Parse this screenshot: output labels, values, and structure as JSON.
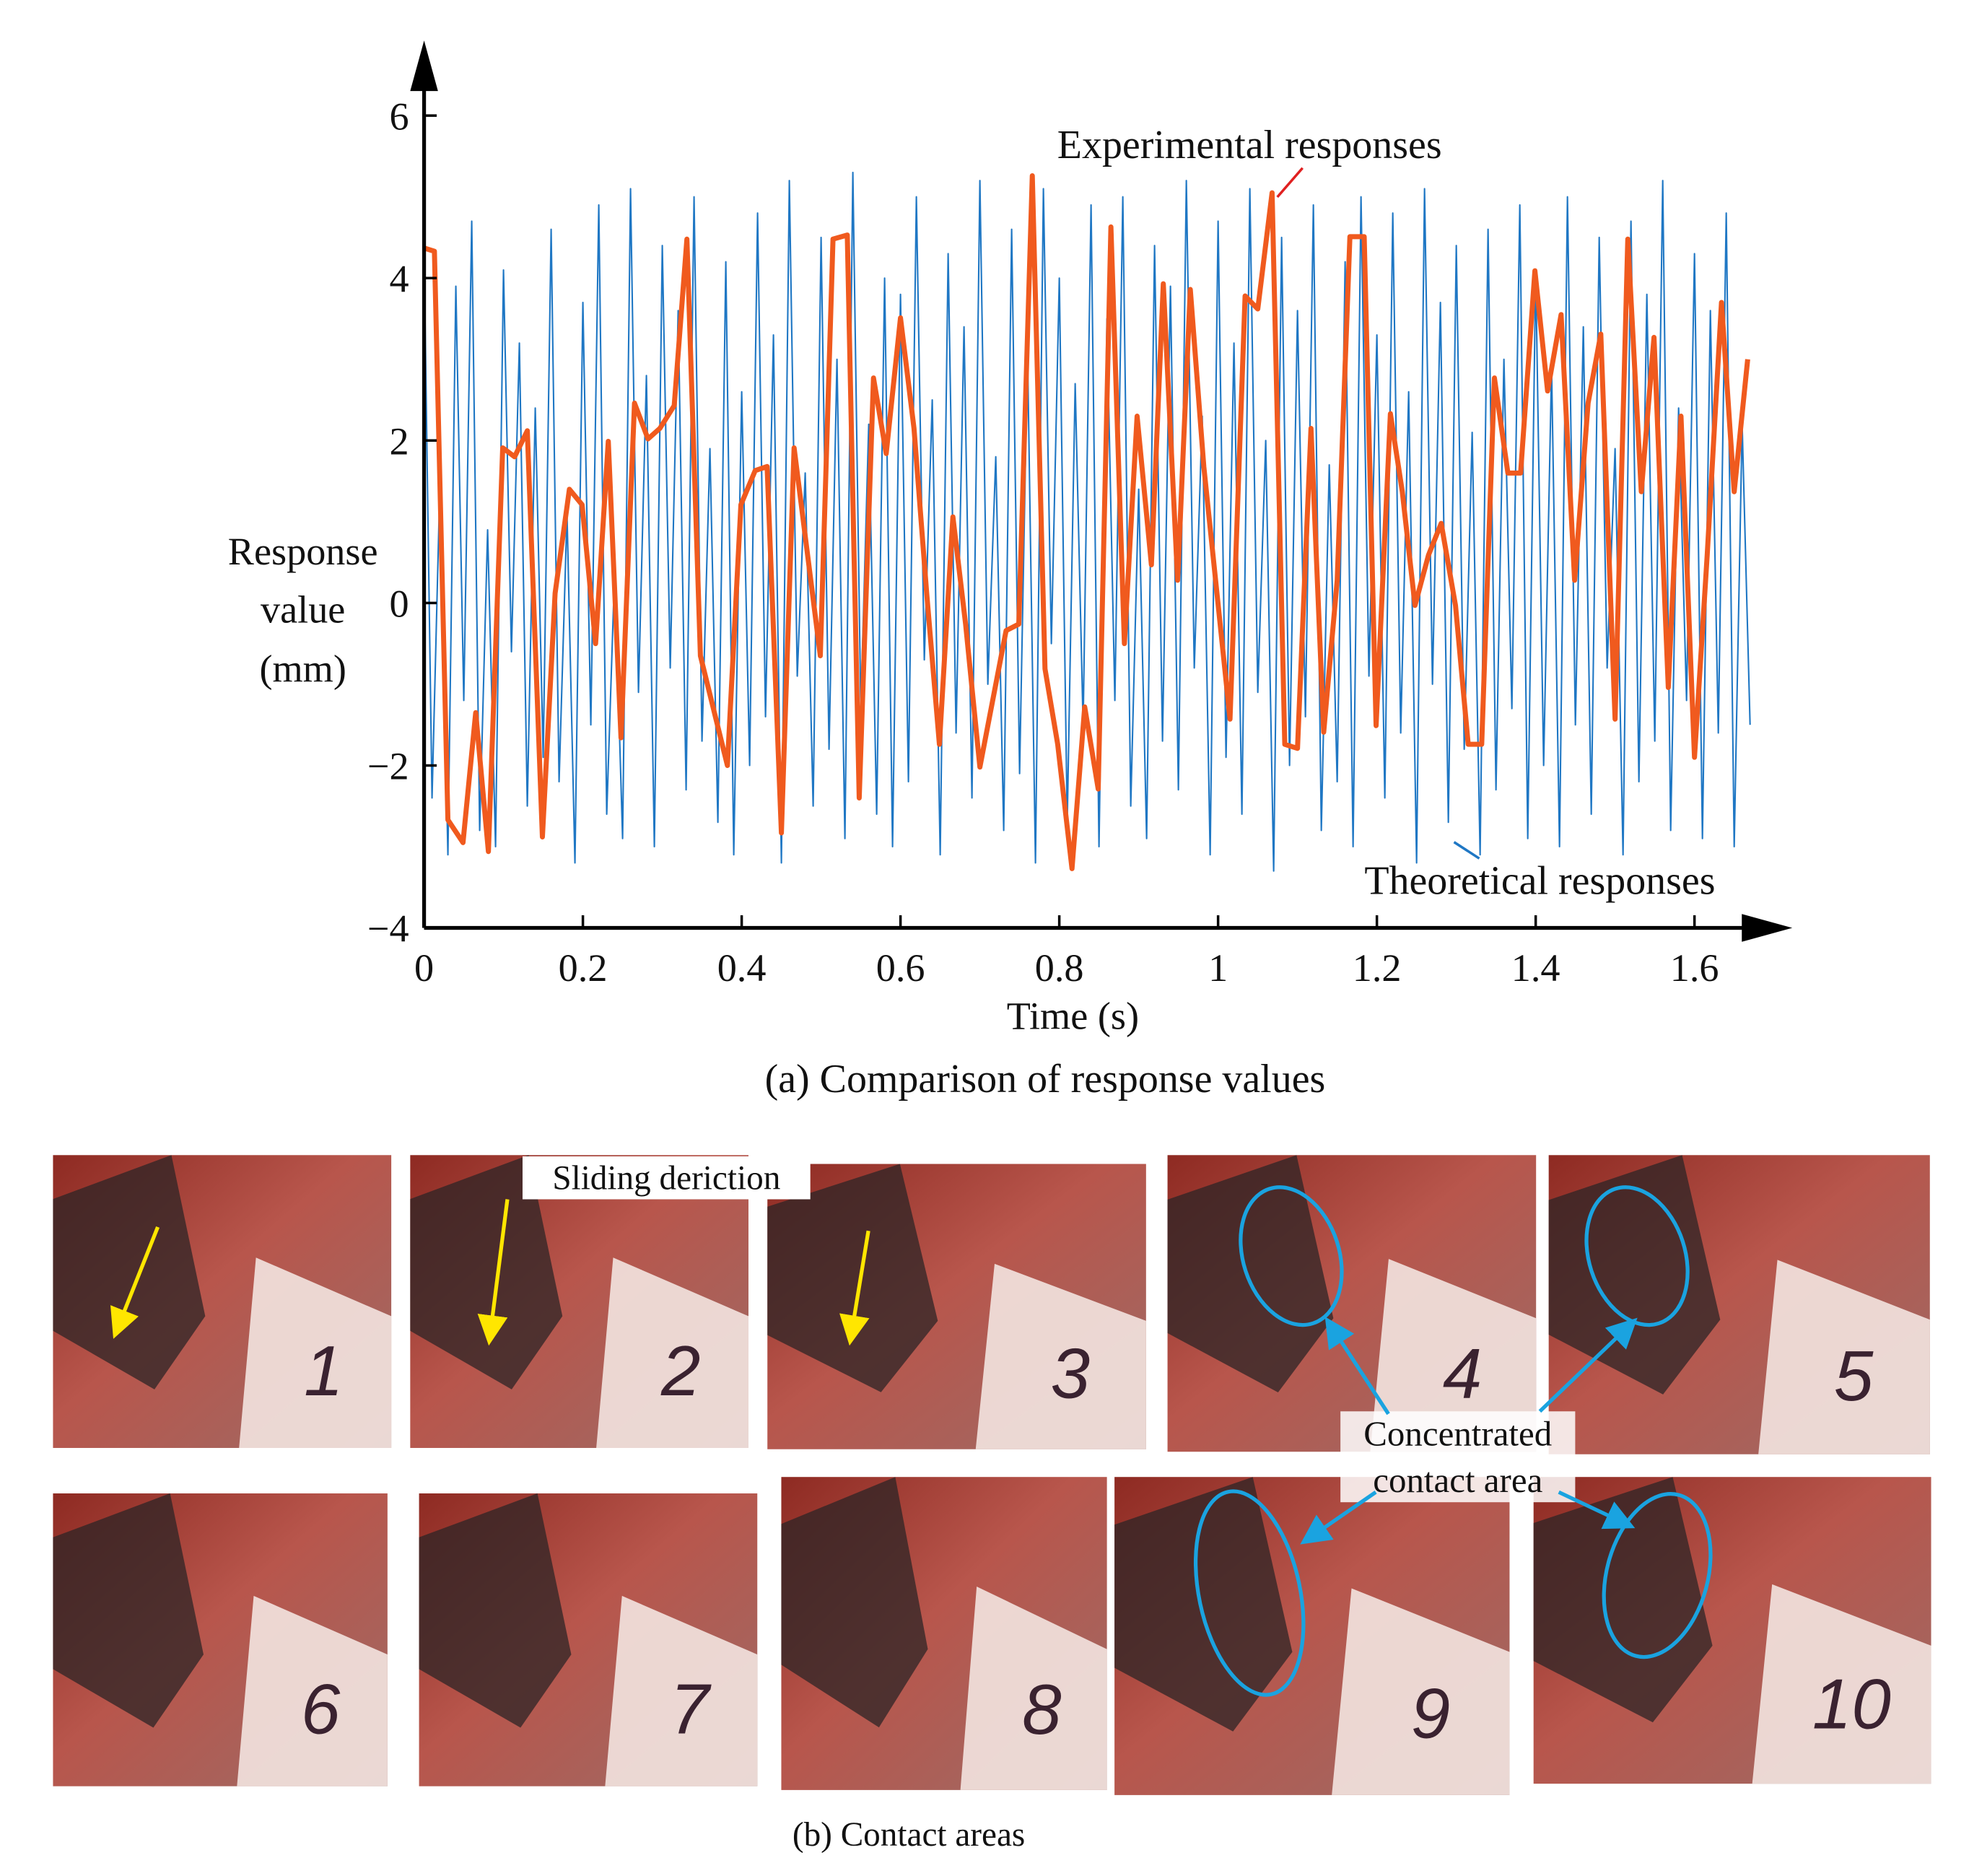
{
  "chart_data": {
    "type": "line",
    "caption": "(a)  Comparison of response values",
    "xlabel": "Time (s)",
    "ylabel": [
      "Response",
      "value",
      "(mm)"
    ],
    "xlim": [
      0,
      1.72
    ],
    "ylim": [
      -4,
      6.8
    ],
    "xticks": [
      0,
      0.2,
      0.4,
      0.6,
      0.8,
      1,
      1.2,
      1.4,
      1.6
    ],
    "yticks": [
      {
        "value": -4,
        "label": "−4"
      },
      {
        "value": -2,
        "label": "−2"
      },
      0,
      2,
      4,
      6
    ],
    "series": [
      {
        "name": "Theoretical responses",
        "color": "#1f77c4",
        "x": [
          0,
          0.01,
          0.02,
          0.03,
          0.04,
          0.05,
          0.06,
          0.07,
          0.08,
          0.09,
          0.1,
          0.11,
          0.12,
          0.13,
          0.14,
          0.15,
          0.16,
          0.17,
          0.18,
          0.19,
          0.2,
          0.21,
          0.22,
          0.23,
          0.24,
          0.25,
          0.26,
          0.27,
          0.28,
          0.29,
          0.3,
          0.31,
          0.32,
          0.33,
          0.34,
          0.35,
          0.36,
          0.37,
          0.38,
          0.39,
          0.4,
          0.41,
          0.42,
          0.43,
          0.44,
          0.45,
          0.46,
          0.47,
          0.48,
          0.49,
          0.5,
          0.51,
          0.52,
          0.53,
          0.54,
          0.55,
          0.56,
          0.57,
          0.58,
          0.59,
          0.6,
          0.61,
          0.62,
          0.63,
          0.64,
          0.65,
          0.66,
          0.67,
          0.68,
          0.69,
          0.7,
          0.71,
          0.72,
          0.73,
          0.74,
          0.75,
          0.76,
          0.77,
          0.78,
          0.79,
          0.8,
          0.81,
          0.82,
          0.83,
          0.84,
          0.85,
          0.86,
          0.87,
          0.88,
          0.89,
          0.9,
          0.91,
          0.92,
          0.93,
          0.94,
          0.95,
          0.96,
          0.97,
          0.98,
          0.99,
          1,
          1.01,
          1.02,
          1.03,
          1.04,
          1.05,
          1.06,
          1.07,
          1.08,
          1.09,
          1.1,
          1.11,
          1.12,
          1.13,
          1.14,
          1.15,
          1.16,
          1.17,
          1.18,
          1.19,
          1.2,
          1.21,
          1.22,
          1.23,
          1.24,
          1.25,
          1.26,
          1.27,
          1.28,
          1.29,
          1.3,
          1.31,
          1.32,
          1.33,
          1.34,
          1.35,
          1.36,
          1.37,
          1.38,
          1.39,
          1.4,
          1.41,
          1.42,
          1.43,
          1.44,
          1.45,
          1.46,
          1.47,
          1.48,
          1.49,
          1.5,
          1.51,
          1.52,
          1.53,
          1.54,
          1.55,
          1.56,
          1.57,
          1.58,
          1.59,
          1.6,
          1.61,
          1.62,
          1.63,
          1.64,
          1.65,
          1.66,
          1.67
        ],
        "values": [
          4.3,
          -2.4,
          1.5,
          -3.1,
          3.9,
          -1.2,
          4.7,
          -2.8,
          0.9,
          -3.0,
          4.1,
          -0.6,
          3.2,
          -2.5,
          2.4,
          -1.9,
          4.6,
          -2.2,
          1.1,
          -3.2,
          3.7,
          -1.5,
          4.9,
          -2.6,
          0.4,
          -2.9,
          5.1,
          -1.1,
          2.8,
          -3.0,
          4.4,
          -0.8,
          3.6,
          -2.3,
          5.0,
          -1.7,
          1.9,
          -2.7,
          4.2,
          -3.1,
          2.6,
          -2.0,
          4.8,
          -1.4,
          3.3,
          -3.2,
          5.2,
          -0.9,
          1.6,
          -2.5,
          4.5,
          -1.8,
          3.0,
          -2.9,
          5.3,
          -1.3,
          2.2,
          -2.6,
          4.0,
          -3.0,
          3.8,
          -2.2,
          5.0,
          -0.7,
          2.5,
          -3.1,
          4.3,
          -1.6,
          3.4,
          -2.4,
          5.2,
          -1.0,
          1.8,
          -2.8,
          4.6,
          -2.1,
          3.1,
          -3.2,
          5.1,
          -0.5,
          4.0,
          -2.7,
          2.7,
          -1.5,
          4.9,
          -3.0,
          3.5,
          -1.2,
          5.0,
          -2.5,
          1.4,
          -2.9,
          4.4,
          -1.7,
          3.9,
          -2.3,
          5.2,
          -0.8,
          2.3,
          -3.1,
          4.7,
          -1.9,
          3.2,
          -2.6,
          5.1,
          -1.1,
          2.0,
          -3.3,
          4.5,
          -2.0,
          3.6,
          -1.4,
          4.9,
          -2.8,
          1.7,
          -2.2,
          4.2,
          -3.0,
          5.0,
          -0.9,
          3.3,
          -2.4,
          4.8,
          -1.6,
          2.6,
          -3.2,
          5.1,
          -1.0,
          3.7,
          -2.7,
          4.4,
          -1.8,
          2.1,
          -3.1,
          4.6,
          -2.3,
          3.0,
          -1.3,
          4.9,
          -2.9,
          4.1,
          -2.0,
          2.9,
          -3.0,
          5.0,
          -1.5,
          3.4,
          -2.6,
          4.5,
          -0.8,
          1.9,
          -3.1,
          4.7,
          -2.2,
          3.8,
          -1.7,
          5.2,
          -2.8,
          2.4,
          -1.2,
          4.3,
          -2.9,
          3.6,
          -1.6,
          4.8,
          -3.0,
          2.2,
          -1.5
        ]
      },
      {
        "name": "Experimental responses",
        "color": "#f05a1e",
        "x": [
          0,
          0.013,
          0.03,
          0.049,
          0.065,
          0.081,
          0.099,
          0.114,
          0.13,
          0.149,
          0.165,
          0.183,
          0.199,
          0.216,
          0.232,
          0.248,
          0.265,
          0.282,
          0.297,
          0.315,
          0.331,
          0.348,
          0.382,
          0.399,
          0.417,
          0.432,
          0.45,
          0.466,
          0.499,
          0.515,
          0.533,
          0.548,
          0.566,
          0.582,
          0.6,
          0.617,
          0.633,
          0.649,
          0.666,
          0.682,
          0.7,
          0.733,
          0.749,
          0.766,
          0.782,
          0.798,
          0.816,
          0.832,
          0.849,
          0.865,
          0.882,
          0.898,
          0.916,
          0.931,
          0.949,
          0.965,
          0.982,
          1.015,
          1.034,
          1.05,
          1.068,
          1.084,
          1.1,
          1.117,
          1.133,
          1.15,
          1.166,
          1.184,
          1.199,
          1.217,
          1.232,
          1.248,
          1.265,
          1.281,
          1.299,
          1.315,
          1.332,
          1.348,
          1.365,
          1.381,
          1.399,
          1.415,
          1.432,
          1.449,
          1.466,
          1.482,
          1.5,
          1.516,
          1.533,
          1.549,
          1.567,
          1.583,
          1.6,
          1.616,
          1.634,
          1.65,
          1.667
        ],
        "values": [
          4.37,
          4.33,
          -2.67,
          -2.95,
          -1.35,
          -3.06,
          1.91,
          1.8,
          2.12,
          -2.88,
          0.12,
          1.4,
          1.21,
          -0.5,
          1.99,
          -1.66,
          2.46,
          2.02,
          2.15,
          2.43,
          4.48,
          -0.65,
          -2.0,
          1.21,
          1.63,
          1.68,
          -2.83,
          1.91,
          -0.65,
          4.48,
          4.53,
          -2.4,
          2.77,
          1.84,
          3.51,
          2.15,
          0.12,
          -1.74,
          1.06,
          -0.26,
          -2.02,
          -0.34,
          -0.26,
          5.26,
          -0.81,
          -1.74,
          -3.27,
          -1.28,
          -2.29,
          4.63,
          -0.5,
          2.3,
          0.47,
          3.93,
          0.28,
          3.86,
          1.68,
          -1.43,
          3.78,
          3.62,
          5.05,
          -1.74,
          -1.79,
          2.15,
          -1.59,
          0.28,
          4.51,
          4.51,
          -1.51,
          2.33,
          1.37,
          -0.03,
          0.59,
          0.98,
          -0.03,
          -1.74,
          -1.74,
          2.77,
          1.6,
          1.6,
          4.09,
          2.61,
          3.55,
          0.28,
          2.46,
          3.31,
          -1.43,
          4.48,
          1.37,
          3.27,
          -1.04,
          2.3,
          -1.9,
          0.59,
          3.7,
          1.37,
          3.0
        ]
      }
    ]
  },
  "contact_areas": {
    "caption": "(b) Contact areas",
    "sliding_label": "Sliding deriction",
    "concentrated_label": [
      "Concentrated",
      "contact area"
    ],
    "photo_numbers": [
      "1",
      "2",
      "3",
      "4",
      "5",
      "6",
      "7",
      "8",
      "9",
      "10"
    ]
  }
}
